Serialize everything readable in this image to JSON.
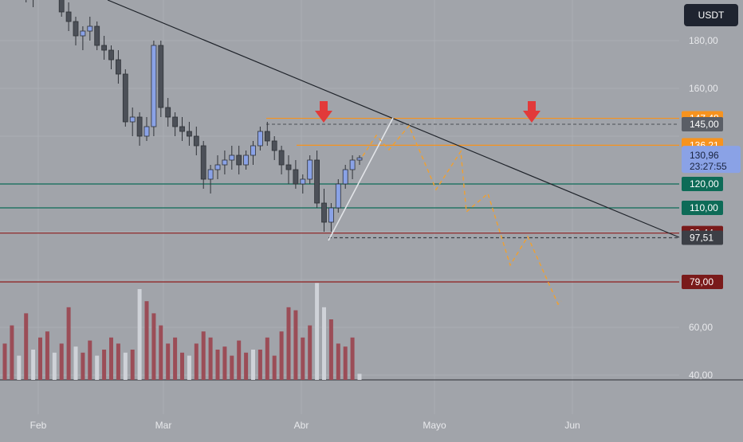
{
  "currency_button": "USDT",
  "colors": {
    "background": "#a1a4aa",
    "candle_up": "#8aa2e6",
    "candle_down": "#4c5058",
    "trendline": "#1f232a",
    "orange_line": "#f7931e",
    "green_line": "#0d6b57",
    "red_line": "#8f1d1d",
    "projection": "#f0a030",
    "arrow": "#e23a3a",
    "volume_up": "#cfd2d8",
    "volume_down": "#9b4d57"
  },
  "chart_data": {
    "type": "candlestick",
    "y_axis": {
      "range": [
        30,
        200
      ],
      "tick_labels": [
        "180,00",
        "160,00",
        "60,00",
        "40,00"
      ],
      "tick_values": [
        180,
        160,
        60,
        40
      ]
    },
    "x_axis": {
      "labels": [
        "Feb",
        "Mar",
        "Abr",
        "Mayo",
        "Jun"
      ]
    },
    "ohlc": [
      [
        202,
        206,
        198,
        204
      ],
      [
        204,
        212,
        200,
        210
      ],
      [
        210,
        214,
        206,
        208
      ],
      [
        208,
        210,
        196,
        198
      ],
      [
        198,
        204,
        194,
        202
      ],
      [
        202,
        208,
        200,
        206
      ],
      [
        206,
        212,
        202,
        204
      ],
      [
        204,
        208,
        198,
        200
      ],
      [
        200,
        204,
        190,
        192
      ],
      [
        192,
        196,
        184,
        188
      ],
      [
        188,
        190,
        178,
        182
      ],
      [
        182,
        186,
        176,
        184
      ],
      [
        184,
        190,
        180,
        186
      ],
      [
        186,
        188,
        176,
        178
      ],
      [
        178,
        182,
        172,
        176
      ],
      [
        176,
        178,
        168,
        172
      ],
      [
        172,
        176,
        162,
        166
      ],
      [
        166,
        168,
        144,
        146
      ],
      [
        146,
        152,
        140,
        148
      ],
      [
        148,
        150,
        136,
        140
      ],
      [
        140,
        148,
        138,
        144
      ],
      [
        144,
        180,
        140,
        178
      ],
      [
        178,
        180,
        148,
        152
      ],
      [
        152,
        156,
        144,
        148
      ],
      [
        148,
        150,
        140,
        144
      ],
      [
        144,
        148,
        138,
        142
      ],
      [
        142,
        146,
        136,
        140
      ],
      [
        140,
        144,
        132,
        136
      ],
      [
        136,
        138,
        118,
        122
      ],
      [
        122,
        128,
        116,
        126
      ],
      [
        126,
        132,
        122,
        128
      ],
      [
        128,
        134,
        124,
        130
      ],
      [
        130,
        136,
        126,
        132
      ],
      [
        132,
        136,
        124,
        128
      ],
      [
        128,
        134,
        126,
        132
      ],
      [
        132,
        138,
        128,
        136
      ],
      [
        136,
        144,
        134,
        142
      ],
      [
        142,
        146,
        136,
        138
      ],
      [
        138,
        140,
        130,
        134
      ],
      [
        134,
        136,
        124,
        128
      ],
      [
        128,
        132,
        120,
        126
      ],
      [
        126,
        130,
        118,
        120
      ],
      [
        120,
        124,
        116,
        122
      ],
      [
        122,
        132,
        120,
        130
      ],
      [
        130,
        134,
        110,
        112
      ],
      [
        112,
        118,
        100,
        104
      ],
      [
        104,
        112,
        100,
        110
      ],
      [
        110,
        122,
        108,
        120
      ],
      [
        120,
        128,
        118,
        126
      ],
      [
        126,
        132,
        122,
        130
      ],
      [
        130,
        132,
        128,
        130.96
      ]
    ],
    "volume": [
      [
        12,
        "d"
      ],
      [
        18,
        "d"
      ],
      [
        8,
        "u"
      ],
      [
        22,
        "d"
      ],
      [
        10,
        "u"
      ],
      [
        14,
        "d"
      ],
      [
        16,
        "d"
      ],
      [
        9,
        "u"
      ],
      [
        12,
        "d"
      ],
      [
        24,
        "d"
      ],
      [
        11,
        "u"
      ],
      [
        9,
        "d"
      ],
      [
        13,
        "d"
      ],
      [
        8,
        "u"
      ],
      [
        10,
        "d"
      ],
      [
        14,
        "d"
      ],
      [
        12,
        "d"
      ],
      [
        9,
        "u"
      ],
      [
        10,
        "d"
      ],
      [
        30,
        "u"
      ],
      [
        26,
        "d"
      ],
      [
        22,
        "d"
      ],
      [
        18,
        "d"
      ],
      [
        12,
        "d"
      ],
      [
        14,
        "d"
      ],
      [
        9,
        "d"
      ],
      [
        8,
        "u"
      ],
      [
        12,
        "d"
      ],
      [
        16,
        "d"
      ],
      [
        14,
        "d"
      ],
      [
        10,
        "d"
      ],
      [
        11,
        "d"
      ],
      [
        8,
        "d"
      ],
      [
        13,
        "d"
      ],
      [
        9,
        "d"
      ],
      [
        10,
        "u"
      ],
      [
        10,
        "d"
      ],
      [
        14,
        "d"
      ],
      [
        8,
        "d"
      ],
      [
        16,
        "d"
      ],
      [
        24,
        "d"
      ],
      [
        23,
        "d"
      ],
      [
        14,
        "d"
      ],
      [
        18,
        "d"
      ],
      [
        32,
        "u"
      ],
      [
        24,
        "u"
      ],
      [
        20,
        "d"
      ],
      [
        12,
        "d"
      ],
      [
        11,
        "d"
      ],
      [
        14,
        "d"
      ],
      [
        2,
        "u"
      ]
    ],
    "horizontal_levels": [
      {
        "value": 147.48,
        "label": "147,48",
        "color": "#f7931e",
        "style": "solid"
      },
      {
        "value": 145.0,
        "label": "145,00",
        "color": "#5d6068",
        "style": "dashed"
      },
      {
        "value": 136.21,
        "label": "136,21",
        "color": "#f7931e",
        "style": "solid"
      },
      {
        "value": 120.0,
        "label": "120,00",
        "color": "#0d6b57",
        "style": "solid"
      },
      {
        "value": 110.0,
        "label": "110,00",
        "color": "#0d6b57",
        "style": "solid"
      },
      {
        "value": 99.44,
        "label": "99,44",
        "color": "#8f1d1d",
        "style": "solid"
      },
      {
        "value": 97.51,
        "label": "97,51",
        "color": "#3c3f46",
        "style": "dashed"
      },
      {
        "value": 79.0,
        "label": "79,00",
        "color": "#8f1d1d",
        "style": "solid"
      }
    ],
    "current_price": {
      "value": 130.96,
      "label": "130,96",
      "countdown": "23:27:55",
      "color": "#8aa2e6"
    }
  }
}
